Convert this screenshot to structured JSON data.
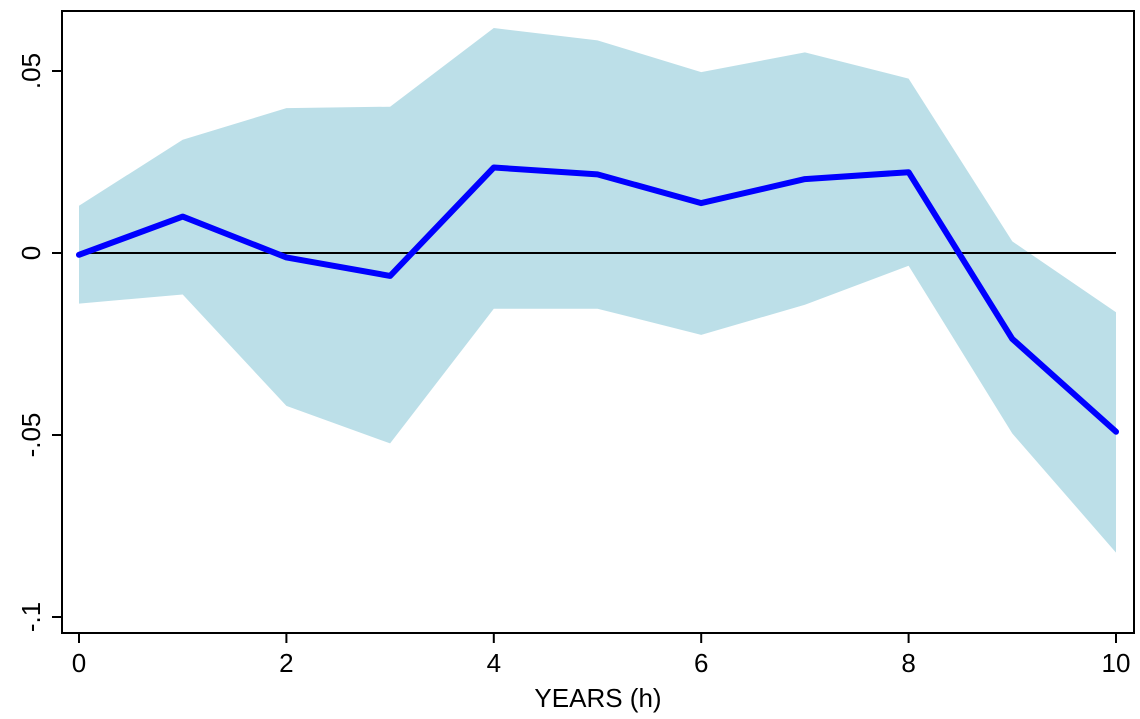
{
  "chart_data": {
    "type": "area",
    "title": "",
    "xlabel": "YEARS (h)",
    "ylabel": "",
    "xlim": [
      0,
      10
    ],
    "ylim": [
      -0.1,
      0.05
    ],
    "x_ticks": [
      {
        "value": 0,
        "label": "0"
      },
      {
        "value": 2,
        "label": "2"
      },
      {
        "value": 4,
        "label": "4"
      },
      {
        "value": 6,
        "label": "6"
      },
      {
        "value": 8,
        "label": "8"
      },
      {
        "value": 10,
        "label": "10"
      }
    ],
    "y_ticks": [
      {
        "value": -0.1,
        "label": "-.1"
      },
      {
        "value": -0.05,
        "label": "-.05"
      },
      {
        "value": 0,
        "label": "0"
      },
      {
        "value": 0.05,
        "label": ".05"
      }
    ],
    "grid": false,
    "legend": "none",
    "reference_line_y": 0,
    "x": [
      0,
      1,
      2,
      3,
      4,
      5,
      6,
      7,
      8,
      9,
      10
    ],
    "series": [
      {
        "role": "estimate",
        "values": [
          -0.0005,
          0.01,
          -0.0012,
          -0.0063,
          0.0235,
          0.0216,
          0.0137,
          0.0203,
          0.0222,
          -0.0236,
          -0.0491
        ],
        "color": "#0000FF"
      },
      {
        "role": "confidence_band",
        "upper": [
          0.013,
          0.0311,
          0.0398,
          0.0402,
          0.0618,
          0.0584,
          0.0497,
          0.0551,
          0.0479,
          0.0032,
          -0.0163
        ],
        "lower": [
          -0.0139,
          -0.0114,
          -0.042,
          -0.0523,
          -0.0153,
          -0.0153,
          -0.0225,
          -0.0142,
          -0.0035,
          -0.0496,
          -0.0823
        ],
        "color": "#BCDFE8"
      }
    ]
  }
}
